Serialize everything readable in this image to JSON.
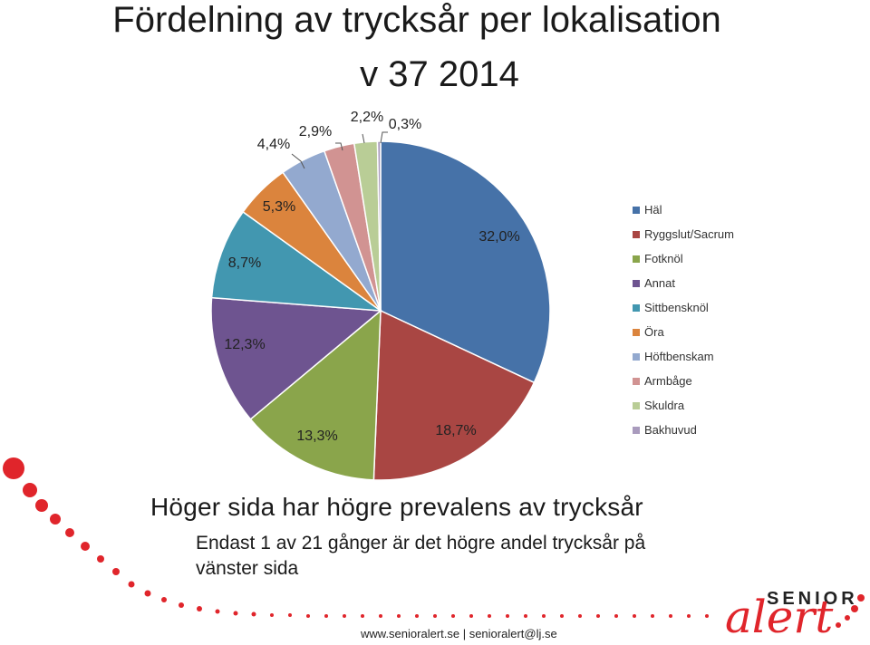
{
  "title_line1": "Fördelning av trycksår per lokalisation",
  "title_line2": "v 37 2014",
  "chart_data": {
    "type": "pie",
    "categories": [
      "Häl",
      "Ryggslut/Sacrum",
      "Fotknöl",
      "Annat",
      "Sittbensknöl",
      "Öra",
      "Höftbenskam",
      "Armbåge",
      "Skuldra",
      "Bakhuvud"
    ],
    "values": [
      32.0,
      18.7,
      13.3,
      12.3,
      8.7,
      5.3,
      4.4,
      2.9,
      2.2,
      0.3
    ],
    "labels": [
      "32,0%",
      "18,7%",
      "13,3%",
      "12,3%",
      "8,7%",
      "5,3%",
      "4,4%",
      "2,9%",
      "2,2%",
      "0,3%"
    ],
    "colors": [
      "#4672a8",
      "#a94643",
      "#8aa54b",
      "#6e5490",
      "#4297b0",
      "#db843d",
      "#93a9cf",
      "#d19392",
      "#b9cd96",
      "#a99bbd"
    ],
    "legend_position": "right"
  },
  "headline": "Höger sida har högre prevalens av trycksår",
  "body": "Endast 1 av 21 gånger är det högre andel trycksår på vänster sida",
  "footer": "www.senioralert.se | senioralert@lj.se",
  "logo": {
    "top": "SENIOR",
    "bottom": "alert"
  }
}
